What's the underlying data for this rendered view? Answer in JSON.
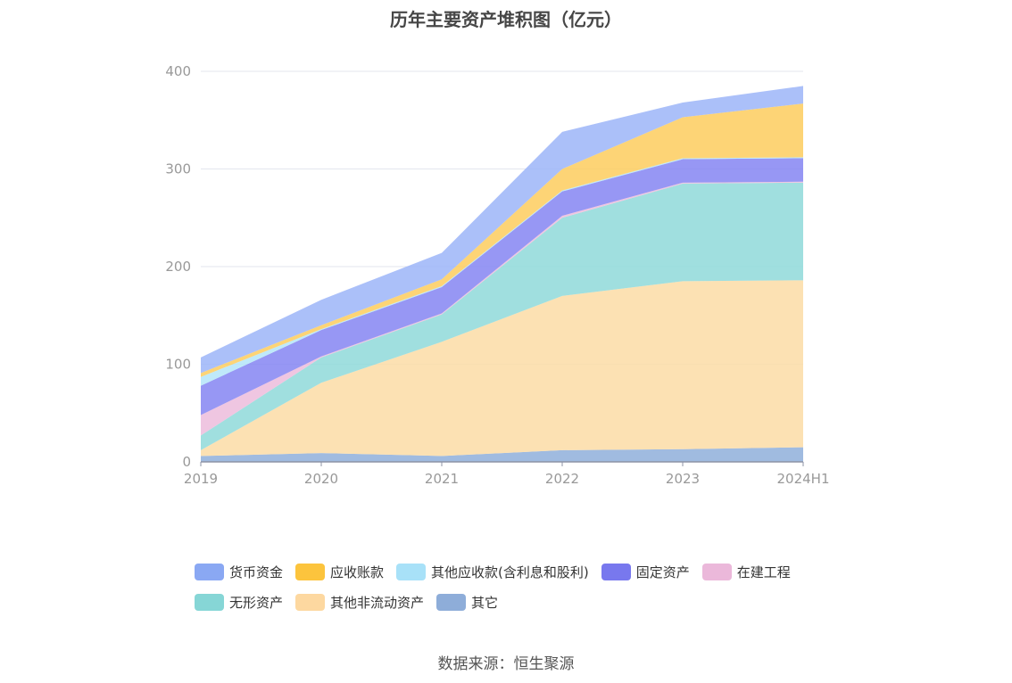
{
  "chart_data": {
    "type": "area",
    "stacked": true,
    "title": "历年主要资产堆积图（亿元）",
    "categories": [
      "2019",
      "2020",
      "2021",
      "2022",
      "2023",
      "2024H1"
    ],
    "ylim": [
      0,
      400
    ],
    "yticks": [
      0,
      100,
      200,
      300,
      400
    ],
    "grid": true,
    "legend_position": "bottom",
    "series": [
      {
        "name": "其它",
        "color": "#8fafdb",
        "values": [
          6,
          9,
          6,
          12,
          13,
          15
        ]
      },
      {
        "name": "其他非流动资产",
        "color": "#fcdca6",
        "values": [
          6,
          72,
          117,
          158,
          172,
          171
        ]
      },
      {
        "name": "无形资产",
        "color": "#8fd9d9",
        "values": [
          15,
          26,
          28,
          80,
          100,
          100
        ]
      },
      {
        "name": "在建工程",
        "color": "#ecbcdc",
        "values": [
          21,
          1,
          1,
          2,
          1,
          1
        ]
      },
      {
        "name": "固定资产",
        "color": "#8585f2",
        "values": [
          30,
          27,
          27,
          25,
          24,
          24
        ]
      },
      {
        "name": "其他应收款(含利息和股利)",
        "color": "#b4e5f9",
        "values": [
          9,
          1,
          1,
          1,
          1,
          1
        ]
      },
      {
        "name": "应收账款",
        "color": "#fdcc5e",
        "values": [
          4,
          4,
          7,
          22,
          42,
          55
        ]
      },
      {
        "name": "货币资金",
        "color": "#9cb5f8",
        "values": [
          16,
          26,
          27,
          38,
          15,
          18
        ]
      }
    ]
  },
  "legend": {
    "row1": [
      {
        "name": "货币资金",
        "color": "#8aa8f3"
      },
      {
        "name": "应收账款",
        "color": "#fcc43d"
      },
      {
        "name": "其他应收款(含利息和股利)",
        "color": "#a8e1f8"
      },
      {
        "name": "固定资产",
        "color": "#7878ee"
      },
      {
        "name": "在建工程",
        "color": "#ebb8da"
      }
    ],
    "row2": [
      {
        "name": "无形资产",
        "color": "#86d6d6"
      },
      {
        "name": "其他非流动资产",
        "color": "#fdd8a0"
      },
      {
        "name": "其它",
        "color": "#8eadd9"
      }
    ]
  },
  "source": "数据来源：恒生聚源"
}
